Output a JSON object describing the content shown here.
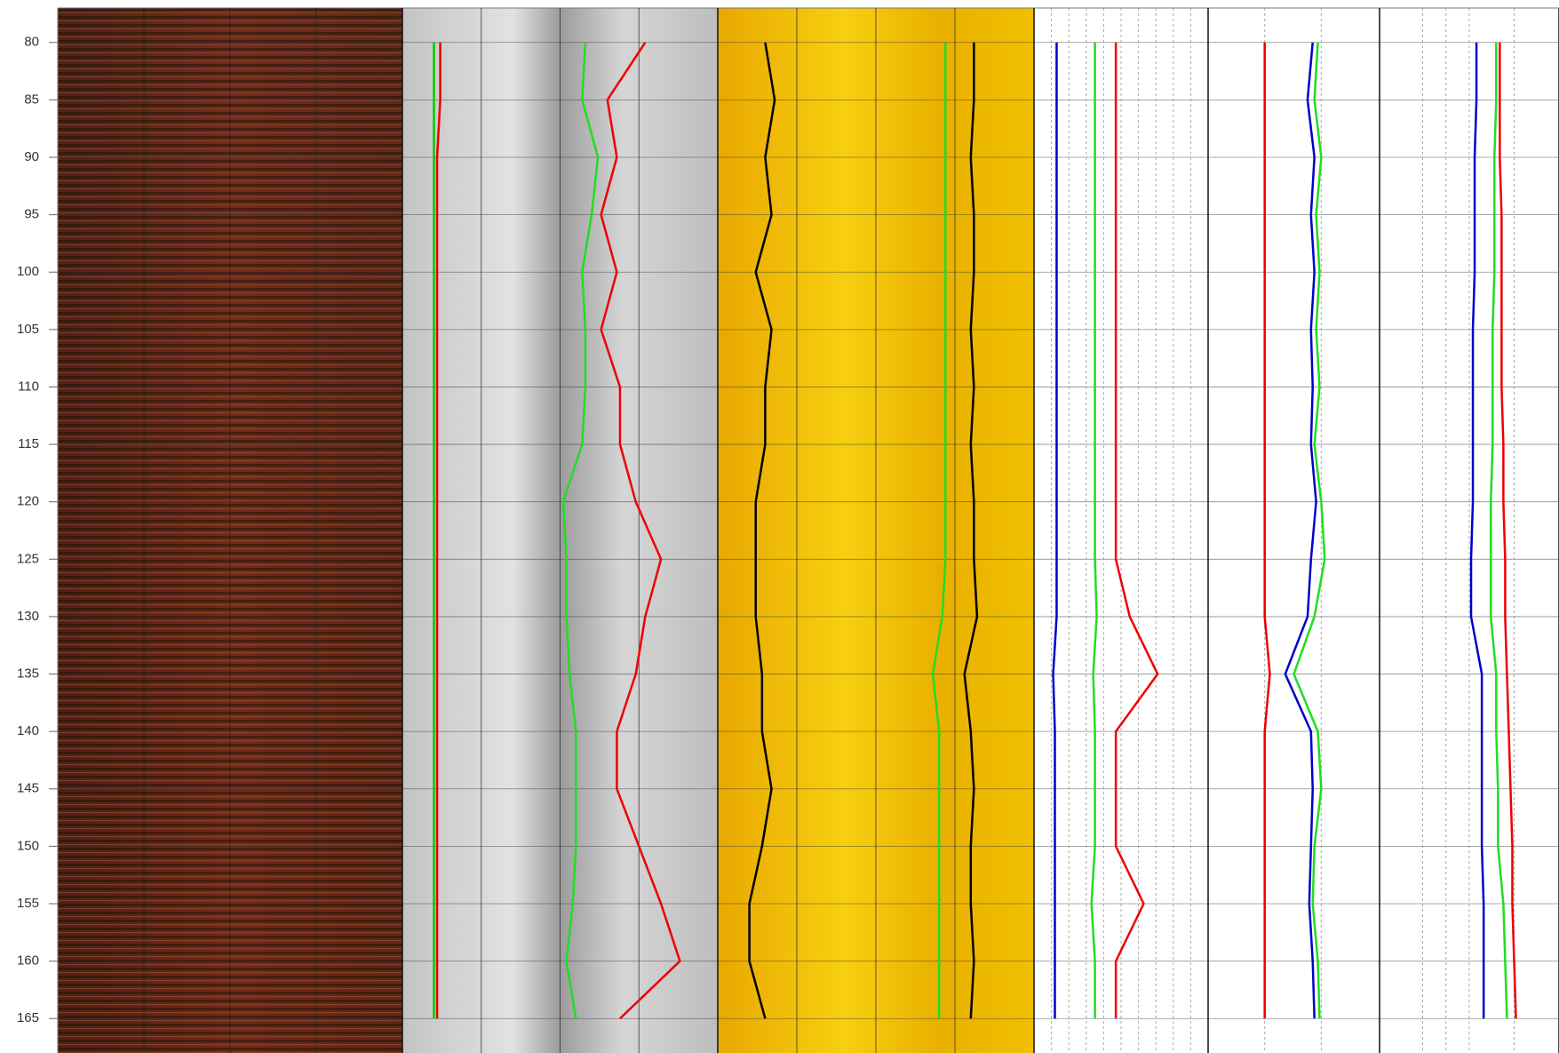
{
  "chart_data": {
    "type": "well-log",
    "depth": [
      80,
      85,
      90,
      95,
      100,
      105,
      110,
      115,
      120,
      125,
      130,
      135,
      140,
      145,
      150,
      155,
      160,
      165
    ],
    "ylim": [
      77,
      168
    ],
    "yticks": [
      80,
      85,
      90,
      95,
      100,
      105,
      110,
      115,
      120,
      125,
      130,
      135,
      140,
      145,
      150,
      155,
      160,
      165
    ],
    "tracks": [
      {
        "xlim": [
          0,
          100
        ],
        "xticks": [
          25,
          50,
          75
        ],
        "series": []
      },
      {
        "xlim": [
          0,
          100
        ],
        "xticks": [
          25,
          50,
          75
        ],
        "series": [
          {
            "color": "#00cc00",
            "values": [
              10,
              10,
              10,
              10,
              10,
              10,
              10,
              10,
              10,
              10,
              10,
              10,
              10,
              10,
              10,
              10,
              10,
              10
            ]
          },
          {
            "color": "#ee0000",
            "values": [
              12,
              12,
              11,
              11,
              11,
              11,
              11,
              11,
              11,
              11,
              11,
              11,
              11,
              11,
              11,
              11,
              11,
              11
            ]
          },
          {
            "color": "#ee0000",
            "values": [
              77,
              65,
              68,
              63,
              68,
              63,
              69,
              69,
              74,
              82,
              77,
              74,
              68,
              68,
              75,
              82,
              88,
              69
            ]
          },
          {
            "color": "#22dd22",
            "values": [
              58,
              57,
              62,
              60,
              57,
              58,
              58,
              57,
              51,
              52,
              52,
              53,
              55,
              55,
              55,
              54,
              52,
              55
            ]
          }
        ]
      },
      {
        "xlim": [
          0,
          100
        ],
        "xticks": [
          25,
          50,
          75
        ],
        "series": [
          {
            "color": "#000000",
            "values": [
              15,
              18,
              15,
              17,
              12,
              17,
              15,
              15,
              12,
              12,
              12,
              14,
              14,
              17,
              14,
              10,
              10,
              15
            ]
          },
          {
            "color": "#22dd22",
            "values": [
              72,
              72,
              72,
              72,
              72,
              72,
              72,
              72,
              72,
              72,
              71,
              68,
              70,
              70,
              70,
              70,
              70,
              70
            ]
          },
          {
            "color": "#000000",
            "values": [
              81,
              81,
              80,
              81,
              81,
              80,
              81,
              80,
              81,
              81,
              82,
              78,
              80,
              81,
              80,
              80,
              81,
              80
            ]
          }
        ]
      },
      {
        "xlim": [
          0,
          100
        ],
        "xticks": [
          10,
          20,
          30,
          40,
          50,
          60,
          70,
          80,
          90
        ],
        "series": [
          {
            "color": "#0000cc",
            "values": [
              13,
              13,
              13,
              13,
              13,
              13,
              13,
              13,
              13,
              13,
              13,
              11,
              12,
              12,
              12,
              12,
              12,
              12
            ]
          },
          {
            "color": "#22dd22",
            "values": [
              35,
              35,
              35,
              35,
              35,
              35,
              35,
              35,
              35,
              35,
              36,
              34,
              35,
              35,
              35,
              33,
              35,
              35
            ]
          },
          {
            "color": "#ee0000",
            "values": [
              47,
              47,
              47,
              47,
              47,
              47,
              47,
              47,
              47,
              47,
              55,
              71,
              47,
              47,
              47,
              63,
              47,
              47
            ]
          }
        ]
      },
      {
        "xlim": [
          0,
          100
        ],
        "xticks": [
          33,
          66
        ],
        "series": [
          {
            "color": "#ee0000",
            "values": [
              33,
              33,
              33,
              33,
              33,
              33,
              33,
              33,
              33,
              33,
              33,
              36,
              33,
              33,
              33,
              33,
              33,
              33
            ]
          },
          {
            "color": "#0000cc",
            "values": [
              61,
              58,
              62,
              60,
              62,
              60,
              61,
              60,
              63,
              60,
              58,
              45,
              60,
              61,
              60,
              59,
              61,
              62
            ]
          },
          {
            "color": "#22dd22",
            "values": [
              64,
              62,
              66,
              63,
              65,
              63,
              65,
              62,
              66,
              68,
              62,
              50,
              64,
              66,
              62,
              61,
              64,
              65
            ]
          }
        ]
      },
      {
        "xlim": [
          0,
          100
        ],
        "xticks": [
          24,
          37,
          50,
          75
        ],
        "series": [
          {
            "color": "#0000cc",
            "values": [
              54,
              54,
              53,
              53,
              53,
              52,
              52,
              52,
              52,
              51,
              51,
              57,
              57,
              57,
              57,
              58,
              58,
              58
            ]
          },
          {
            "color": "#22dd22",
            "values": [
              65,
              65,
              64,
              64,
              64,
              63,
              63,
              63,
              62,
              62,
              62,
              65,
              65,
              66,
              66,
              69,
              70,
              71
            ]
          },
          {
            "color": "#ee0000",
            "values": [
              67,
              67,
              67,
              68,
              68,
              68,
              68,
              69,
              69,
              70,
              70,
              71,
              72,
              73,
              74,
              74,
              75,
              76
            ]
          }
        ]
      }
    ]
  }
}
